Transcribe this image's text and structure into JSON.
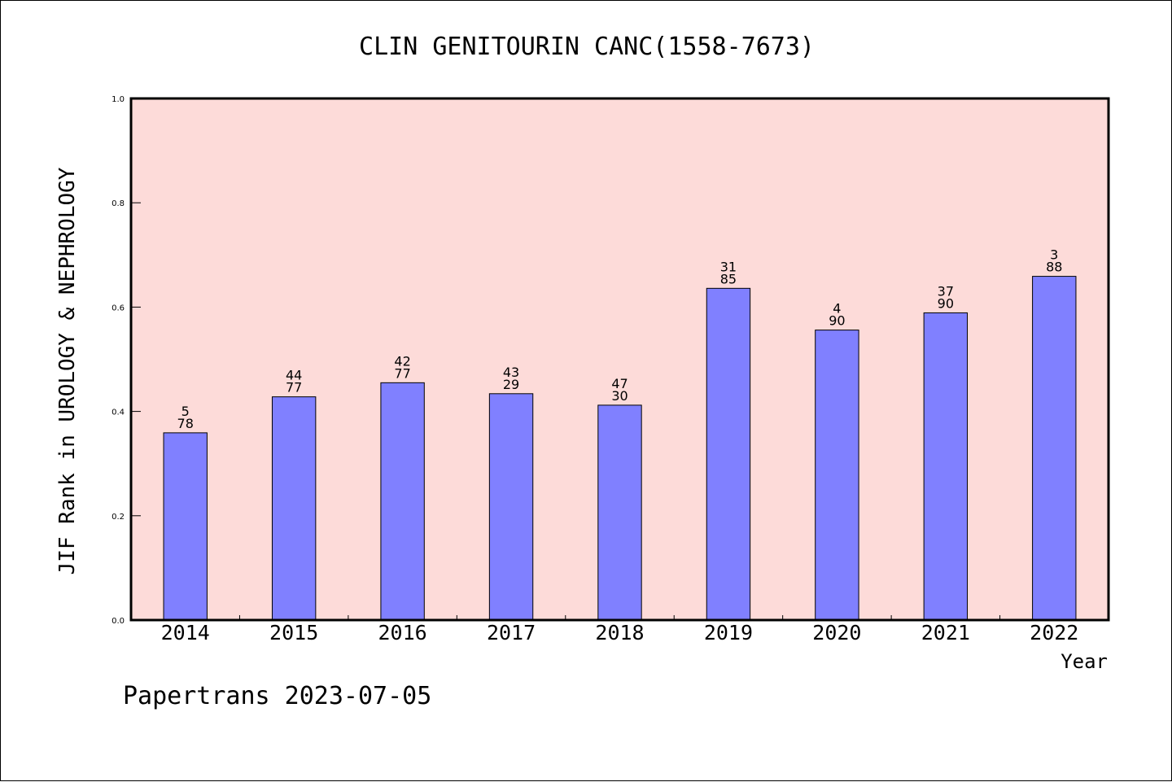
{
  "chart_data": {
    "type": "bar",
    "title": "CLIN GENITOURIN CANC(1558-7673)",
    "xlabel": "Year",
    "ylabel": "JIF Rank in UROLOGY & NEPHROLOGY",
    "ylim": [
      0,
      1.0
    ],
    "yticks": [
      "0.0",
      "0.2",
      "0.4",
      "0.6",
      "0.8",
      "1.0"
    ],
    "ytick_values": [
      0,
      0.2,
      0.4,
      0.6,
      0.8,
      1.0
    ],
    "categories": [
      "2014",
      "2015",
      "2016",
      "2017",
      "2018",
      "2019",
      "2020",
      "2021",
      "2022"
    ],
    "values": [
      0.359,
      0.428,
      0.455,
      0.434,
      0.412,
      0.636,
      0.556,
      0.589,
      0.659
    ],
    "labels_top": [
      "5",
      "44",
      "42",
      "43",
      "47",
      "31",
      "4",
      "37",
      "3"
    ],
    "labels_bottom": [
      "78",
      "77",
      "77",
      "29",
      "30",
      "85",
      "90",
      "90",
      "88"
    ],
    "grid": false,
    "colors": {
      "plot_background": "#fddbd9",
      "bar_fill": "#8080ff",
      "bar_stroke": "#000000"
    }
  },
  "footer": {
    "watermark": "Papertrans 2023-07-05"
  }
}
